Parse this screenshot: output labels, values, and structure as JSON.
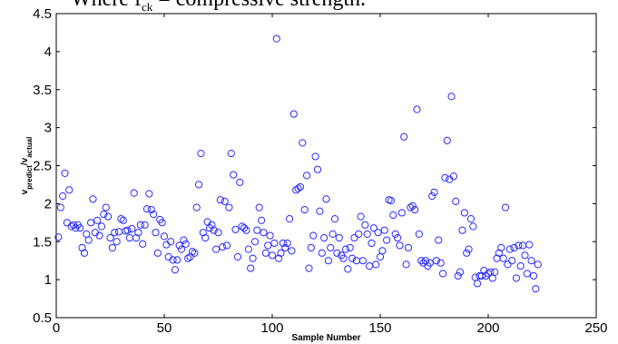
{
  "caption": {
    "prefix": "Where  f",
    "sub": "ck",
    "suffix": "  =  compressive  strength."
  },
  "chart_data": {
    "type": "scatter",
    "xlabel": "Sample Number",
    "ylabel_main": "v",
    "ylabel_sub1": "predict",
    "ylabel_mid": "/v",
    "ylabel_sub2": "actual",
    "xlim": [
      0,
      250
    ],
    "ylim": [
      0.5,
      4.5
    ],
    "xticks": [
      0,
      50,
      100,
      150,
      200,
      250
    ],
    "yticks": [
      0.5,
      1,
      1.5,
      2,
      2.5,
      3,
      3.5,
      4,
      4.5
    ],
    "xtick_labels": [
      "0",
      "50",
      "100",
      "150",
      "200",
      "250"
    ],
    "ytick_labels": [
      "0.5",
      "1",
      "1.5",
      "2",
      "2.5",
      "3",
      "3.5",
      "4",
      "4.5"
    ],
    "marker_color": "#2b2bff",
    "series": [
      {
        "points": [
          [
            1,
            1.56
          ],
          [
            2,
            1.95
          ],
          [
            3,
            2.1
          ],
          [
            4,
            2.4
          ],
          [
            5,
            1.75
          ],
          [
            6,
            2.18
          ],
          [
            7,
            1.7
          ],
          [
            8,
            1.72
          ],
          [
            9,
            1.68
          ],
          [
            10,
            1.72
          ],
          [
            11,
            1.68
          ],
          [
            12,
            1.42
          ],
          [
            13,
            1.35
          ],
          [
            14,
            1.6
          ],
          [
            15,
            1.52
          ],
          [
            16,
            1.75
          ],
          [
            17,
            2.06
          ],
          [
            18,
            1.62
          ],
          [
            19,
            1.78
          ],
          [
            20,
            1.58
          ],
          [
            21,
            1.7
          ],
          [
            22,
            1.86
          ],
          [
            23,
            1.95
          ],
          [
            24,
            1.83
          ],
          [
            25,
            1.55
          ],
          [
            26,
            1.42
          ],
          [
            27,
            1.62
          ],
          [
            28,
            1.5
          ],
          [
            29,
            1.63
          ],
          [
            30,
            1.8
          ],
          [
            31,
            1.78
          ],
          [
            32,
            1.64
          ],
          [
            33,
            1.65
          ],
          [
            34,
            1.55
          ],
          [
            35,
            1.67
          ],
          [
            36,
            2.14
          ],
          [
            37,
            1.55
          ],
          [
            38,
            1.62
          ],
          [
            39,
            1.72
          ],
          [
            40,
            1.47
          ],
          [
            41,
            1.72
          ],
          [
            42,
            1.93
          ],
          [
            43,
            2.13
          ],
          [
            44,
            1.92
          ],
          [
            45,
            1.86
          ],
          [
            46,
            1.62
          ],
          [
            47,
            1.35
          ],
          [
            48,
            1.79
          ],
          [
            49,
            1.75
          ],
          [
            50,
            1.57
          ],
          [
            51,
            1.46
          ],
          [
            52,
            1.3
          ],
          [
            53,
            1.5
          ],
          [
            54,
            1.26
          ],
          [
            55,
            1.13
          ],
          [
            56,
            1.26
          ],
          [
            57,
            1.45
          ],
          [
            58,
            1.4
          ],
          [
            59,
            1.52
          ],
          [
            60,
            1.47
          ],
          [
            61,
            1.28
          ],
          [
            62,
            1.3
          ],
          [
            63,
            1.37
          ],
          [
            64,
            1.35
          ],
          [
            65,
            1.95
          ],
          [
            66,
            2.25
          ],
          [
            67,
            2.66
          ],
          [
            68,
            1.62
          ],
          [
            69,
            1.55
          ],
          [
            70,
            1.76
          ],
          [
            71,
            1.68
          ],
          [
            72,
            1.72
          ],
          [
            73,
            1.65
          ],
          [
            74,
            1.4
          ],
          [
            75,
            1.62
          ],
          [
            76,
            2.05
          ],
          [
            77,
            1.43
          ],
          [
            78,
            2.03
          ],
          [
            79,
            1.45
          ],
          [
            80,
            1.95
          ],
          [
            81,
            2.66
          ],
          [
            82,
            2.38
          ],
          [
            83,
            1.66
          ],
          [
            84,
            1.3
          ],
          [
            85,
            2.28
          ],
          [
            86,
            1.7
          ],
          [
            87,
            1.68
          ],
          [
            88,
            1.65
          ],
          [
            89,
            1.4
          ],
          [
            90,
            1.15
          ],
          [
            91,
            1.28
          ],
          [
            92,
            1.5
          ],
          [
            93,
            1.65
          ],
          [
            94,
            1.95
          ],
          [
            95,
            1.78
          ],
          [
            96,
            1.62
          ],
          [
            97,
            1.35
          ],
          [
            98,
            1.45
          ],
          [
            99,
            1.58
          ],
          [
            100,
            1.32
          ],
          [
            101,
            1.48
          ],
          [
            102,
            4.17
          ],
          [
            103,
            1.28
          ],
          [
            104,
            1.35
          ],
          [
            105,
            1.48
          ],
          [
            106,
            1.42
          ],
          [
            107,
            1.48
          ],
          [
            108,
            1.8
          ],
          [
            109,
            1.38
          ],
          [
            110,
            3.18
          ],
          [
            111,
            2.18
          ],
          [
            112,
            2.2
          ],
          [
            113,
            2.22
          ],
          [
            114,
            2.8
          ],
          [
            115,
            1.92
          ],
          [
            116,
            2.37
          ],
          [
            117,
            1.15
          ],
          [
            118,
            1.42
          ],
          [
            119,
            1.58
          ],
          [
            120,
            2.62
          ],
          [
            121,
            2.45
          ],
          [
            122,
            1.9
          ],
          [
            123,
            1.35
          ],
          [
            124,
            1.55
          ],
          [
            125,
            2.06
          ],
          [
            126,
            1.25
          ],
          [
            127,
            1.42
          ],
          [
            128,
            1.6
          ],
          [
            129,
            1.8
          ],
          [
            130,
            1.35
          ],
          [
            131,
            1.55
          ],
          [
            132,
            1.32
          ],
          [
            133,
            1.28
          ],
          [
            134,
            1.4
          ],
          [
            135,
            1.14
          ],
          [
            136,
            1.42
          ],
          [
            137,
            1.28
          ],
          [
            138,
            1.55
          ],
          [
            139,
            1.25
          ],
          [
            140,
            1.6
          ],
          [
            141,
            1.83
          ],
          [
            142,
            1.25
          ],
          [
            143,
            1.72
          ],
          [
            144,
            1.6
          ],
          [
            145,
            1.18
          ],
          [
            146,
            1.48
          ],
          [
            147,
            1.68
          ],
          [
            148,
            1.2
          ],
          [
            149,
            1.62
          ],
          [
            150,
            1.3
          ],
          [
            151,
            1.38
          ],
          [
            152,
            1.65
          ],
          [
            153,
            1.52
          ],
          [
            154,
            2.05
          ],
          [
            155,
            2.04
          ],
          [
            156,
            1.85
          ],
          [
            157,
            1.6
          ],
          [
            158,
            1.55
          ],
          [
            159,
            1.45
          ],
          [
            160,
            1.88
          ],
          [
            161,
            2.88
          ],
          [
            162,
            1.2
          ],
          [
            163,
            1.42
          ],
          [
            164,
            1.95
          ],
          [
            165,
            1.97
          ],
          [
            166,
            1.92
          ],
          [
            167,
            3.24
          ],
          [
            168,
            1.6
          ],
          [
            169,
            1.25
          ],
          [
            170,
            1.22
          ],
          [
            171,
            1.25
          ],
          [
            172,
            1.18
          ],
          [
            173,
            1.22
          ],
          [
            174,
            2.1
          ],
          [
            175,
            2.15
          ],
          [
            176,
            1.25
          ],
          [
            177,
            1.52
          ],
          [
            178,
            1.22
          ],
          [
            179,
            1.08
          ],
          [
            180,
            2.34
          ],
          [
            181,
            2.83
          ],
          [
            182,
            2.32
          ],
          [
            183,
            3.41
          ],
          [
            184,
            2.36
          ],
          [
            185,
            2.03
          ],
          [
            186,
            1.05
          ],
          [
            187,
            1.1
          ],
          [
            188,
            1.65
          ],
          [
            189,
            1.88
          ],
          [
            190,
            1.35
          ],
          [
            191,
            1.4
          ],
          [
            192,
            1.8
          ],
          [
            193,
            1.7
          ],
          [
            194,
            1.03
          ],
          [
            195,
            0.95
          ],
          [
            196,
            1.05
          ],
          [
            197,
            1.05
          ],
          [
            198,
            1.12
          ],
          [
            199,
            1.05
          ],
          [
            200,
            1.08
          ],
          [
            201,
            1.1
          ],
          [
            202,
            1.02
          ],
          [
            203,
            1.1
          ],
          [
            204,
            1.28
          ],
          [
            205,
            1.35
          ],
          [
            206,
            1.42
          ],
          [
            207,
            1.28
          ],
          [
            208,
            1.95
          ],
          [
            209,
            1.2
          ],
          [
            210,
            1.4
          ],
          [
            211,
            1.25
          ],
          [
            212,
            1.42
          ],
          [
            213,
            1.02
          ],
          [
            214,
            1.45
          ],
          [
            215,
            1.18
          ],
          [
            216,
            1.45
          ],
          [
            217,
            1.32
          ],
          [
            218,
            1.08
          ],
          [
            219,
            1.46
          ],
          [
            220,
            1.25
          ],
          [
            221,
            1.05
          ],
          [
            222,
            0.88
          ],
          [
            223,
            1.2
          ]
        ]
      }
    ]
  }
}
